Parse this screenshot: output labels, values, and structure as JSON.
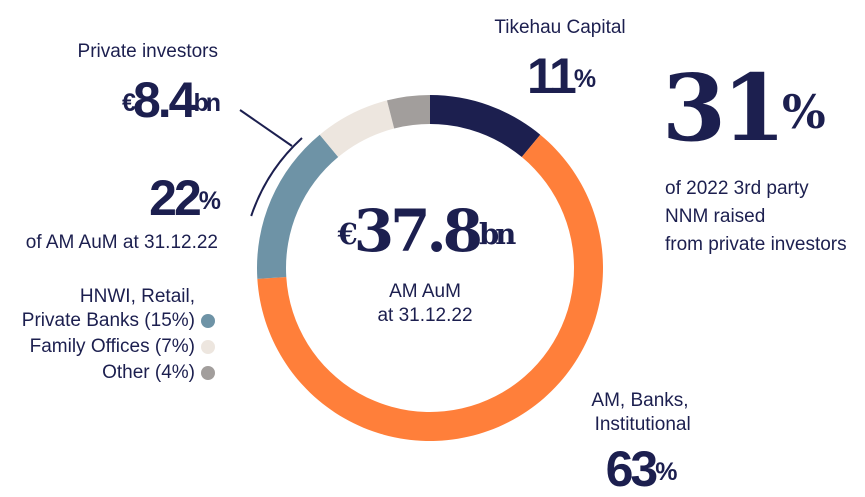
{
  "chart_data": {
    "type": "donut",
    "center_label": "€37.8bn",
    "center_sublabels": [
      "AM AuM",
      "at 31.12.22"
    ],
    "categories": [
      "Tikehau Capital",
      "AM, Banks, Institutional",
      "HNWI, Retail, Private Banks (15%)",
      "Family Offices (7%)",
      "Other (4%)"
    ],
    "values": [
      11,
      63,
      15,
      7,
      4
    ],
    "value_labels": [
      "11%",
      "63%",
      null,
      null,
      null
    ],
    "colors": [
      "#1c1f4f",
      "#ff7f3a",
      "#6e93a6",
      "#ede6df",
      "#a29e9c"
    ],
    "annotations": {
      "private_title": "Private investors",
      "private_amount": "€8.4bn",
      "private_share": "22%",
      "private_share_note": "of AM AuM at 31.12.22",
      "nnm_share": "31%",
      "nnm_note": [
        "of 2022 3rd party",
        "NNM raised",
        "from private investors"
      ]
    }
  }
}
